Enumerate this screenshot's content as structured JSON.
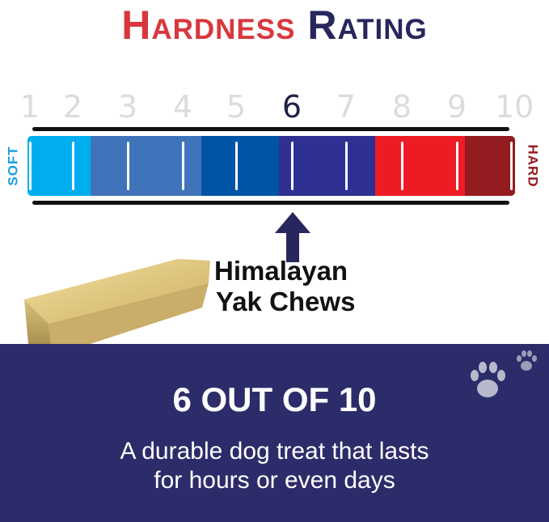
{
  "title": {
    "part1": "Hardness",
    "part2": "Rating"
  },
  "scale": {
    "numbers": [
      "1",
      "2",
      "3",
      "4",
      "5",
      "6",
      "7",
      "8",
      "9",
      "10"
    ],
    "selected": "6",
    "soft_label": "SOFT",
    "hard_label": "HARD",
    "segment_colors": [
      "#00aeef",
      "#3f74bb",
      "#0054a6",
      "#2e3192",
      "#ed1c24",
      "#941b1f"
    ]
  },
  "product": {
    "line1": "Himalayan",
    "line2": "Yak Chews",
    "icon": "yak-chew-image"
  },
  "panel": {
    "headline": "6 OUT OF 10",
    "line1": "A durable dog treat that lasts",
    "line2": "for hours or even days",
    "icon": "paw-print-icon",
    "bg": "#2d2c6a"
  }
}
